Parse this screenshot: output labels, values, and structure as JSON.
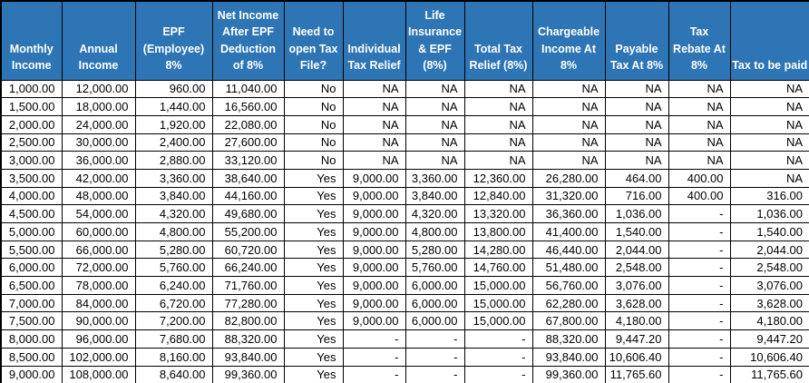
{
  "colors": {
    "header_bg": "#2E75B6",
    "header_text": "#FFFFFF",
    "cell_bg": "#FFFFFF",
    "cell_text": "#000000",
    "border": "#000000"
  },
  "table": {
    "columns": [
      {
        "id": "monthly-income",
        "label": "Monthly Income"
      },
      {
        "id": "annual-income",
        "label": "Annual Income"
      },
      {
        "id": "epf-employee-8pct",
        "label": "EPF (Employee) 8%"
      },
      {
        "id": "net-income-after-epf",
        "label": "Net Income After EPF Deduction of 8%"
      },
      {
        "id": "need-tax-file",
        "label": "Need to open Tax File?"
      },
      {
        "id": "individual-tax-relief",
        "label": "Individual Tax Relief"
      },
      {
        "id": "life-insurance-epf",
        "label": "Life Insurance & EPF (8%)"
      },
      {
        "id": "total-tax-relief",
        "label": "Total Tax Relief (8%)"
      },
      {
        "id": "chargeable-income",
        "label": "Chargeable Income At 8%"
      },
      {
        "id": "payable-tax",
        "label": "Payable Tax At 8%"
      },
      {
        "id": "tax-rebate",
        "label": "Tax Rebate At 8%"
      },
      {
        "id": "tax-to-be-paid",
        "label": "Tax to be paid"
      }
    ],
    "rows": [
      [
        "1,000.00",
        "12,000.00",
        "960.00",
        "11,040.00",
        "No",
        "NA",
        "NA",
        "NA",
        "NA",
        "NA",
        "NA",
        "NA"
      ],
      [
        "1,500.00",
        "18,000.00",
        "1,440.00",
        "16,560.00",
        "No",
        "NA",
        "NA",
        "NA",
        "NA",
        "NA",
        "NA",
        "NA"
      ],
      [
        "2,000.00",
        "24,000.00",
        "1,920.00",
        "22,080.00",
        "No",
        "NA",
        "NA",
        "NA",
        "NA",
        "NA",
        "NA",
        "NA"
      ],
      [
        "2,500.00",
        "30,000.00",
        "2,400.00",
        "27,600.00",
        "No",
        "NA",
        "NA",
        "NA",
        "NA",
        "NA",
        "NA",
        "NA"
      ],
      [
        "3,000.00",
        "36,000.00",
        "2,880.00",
        "33,120.00",
        "No",
        "NA",
        "NA",
        "NA",
        "NA",
        "NA",
        "NA",
        "NA"
      ],
      [
        "3,500.00",
        "42,000.00",
        "3,360.00",
        "38,640.00",
        "Yes",
        "9,000.00",
        "3,360.00",
        "12,360.00",
        "26,280.00",
        "464.00",
        "400.00",
        "NA"
      ],
      [
        "4,000.00",
        "48,000.00",
        "3,840.00",
        "44,160.00",
        "Yes",
        "9,000.00",
        "3,840.00",
        "12,840.00",
        "31,320.00",
        "716.00",
        "400.00",
        "316.00"
      ],
      [
        "4,500.00",
        "54,000.00",
        "4,320.00",
        "49,680.00",
        "Yes",
        "9,000.00",
        "4,320.00",
        "13,320.00",
        "36,360.00",
        "1,036.00",
        "-",
        "1,036.00"
      ],
      [
        "5,000.00",
        "60,000.00",
        "4,800.00",
        "55,200.00",
        "Yes",
        "9,000.00",
        "4,800.00",
        "13,800.00",
        "41,400.00",
        "1,540.00",
        "-",
        "1,540.00"
      ],
      [
        "5,500.00",
        "66,000.00",
        "5,280.00",
        "60,720.00",
        "Yes",
        "9,000.00",
        "5,280.00",
        "14,280.00",
        "46,440.00",
        "2,044.00",
        "-",
        "2,044.00"
      ],
      [
        "6,000.00",
        "72,000.00",
        "5,760.00",
        "66,240.00",
        "Yes",
        "9,000.00",
        "5,760.00",
        "14,760.00",
        "51,480.00",
        "2,548.00",
        "-",
        "2,548.00"
      ],
      [
        "6,500.00",
        "78,000.00",
        "6,240.00",
        "71,760.00",
        "Yes",
        "9,000.00",
        "6,000.00",
        "15,000.00",
        "56,760.00",
        "3,076.00",
        "-",
        "3,076.00"
      ],
      [
        "7,000.00",
        "84,000.00",
        "6,720.00",
        "77,280.00",
        "Yes",
        "9,000.00",
        "6,000.00",
        "15,000.00",
        "62,280.00",
        "3,628.00",
        "-",
        "3,628.00"
      ],
      [
        "7,500.00",
        "90,000.00",
        "7,200.00",
        "82,800.00",
        "Yes",
        "9,000.00",
        "6,000.00",
        "15,000.00",
        "67,800.00",
        "4,180.00",
        "-",
        "4,180.00"
      ],
      [
        "8,000.00",
        "96,000.00",
        "7,680.00",
        "88,320.00",
        "Yes",
        "-",
        "-",
        "-",
        "88,320.00",
        "9,447.20",
        "-",
        "9,447.20"
      ],
      [
        "8,500.00",
        "102,000.00",
        "8,160.00",
        "93,840.00",
        "Yes",
        "-",
        "-",
        "-",
        "93,840.00",
        "10,606.40",
        "-",
        "10,606.40"
      ],
      [
        "9,000.00",
        "108,000.00",
        "8,640.00",
        "99,360.00",
        "Yes",
        "-",
        "-",
        "-",
        "99,360.00",
        "11,765.60",
        "-",
        "11,765.60"
      ]
    ]
  }
}
